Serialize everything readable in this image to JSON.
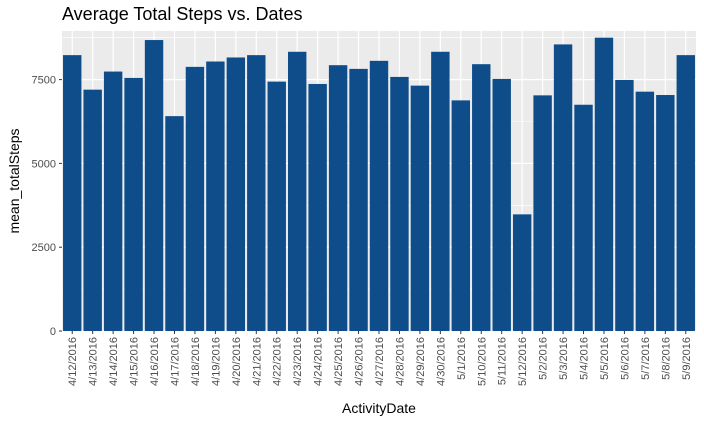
{
  "chart_data": {
    "type": "bar",
    "title": "Average Total Steps vs. Dates",
    "xlabel": "ActivityDate",
    "ylabel": "mean_totalSteps",
    "ylim": [
      0,
      8950
    ],
    "yticks": [
      0,
      2500,
      5000,
      7500
    ],
    "grid": true,
    "legend": "none",
    "bar_color": "#0e4d8a",
    "panel_color": "#ebebeb",
    "grid_color": "#ffffff",
    "categories": [
      "4/12/2016",
      "4/13/2016",
      "4/14/2016",
      "4/15/2016",
      "4/16/2016",
      "4/17/2016",
      "4/18/2016",
      "4/19/2016",
      "4/20/2016",
      "4/21/2016",
      "4/22/2016",
      "4/23/2016",
      "4/24/2016",
      "4/25/2016",
      "4/26/2016",
      "4/27/2016",
      "4/28/2016",
      "4/29/2016",
      "4/30/2016",
      "5/1/2016",
      "5/10/2016",
      "5/11/2016",
      "5/12/2016",
      "5/2/2016",
      "5/3/2016",
      "5/4/2016",
      "5/5/2016",
      "5/6/2016",
      "5/7/2016",
      "5/8/2016",
      "5/9/2016"
    ],
    "values": [
      8230,
      7200,
      7740,
      7550,
      8680,
      6410,
      7880,
      8040,
      8160,
      8230,
      7440,
      8330,
      7370,
      7930,
      7820,
      8060,
      7580,
      7320,
      8330,
      6880,
      7960,
      7520,
      3480,
      7030,
      8550,
      6750,
      8750,
      7490,
      7140,
      7040,
      8230
    ]
  }
}
